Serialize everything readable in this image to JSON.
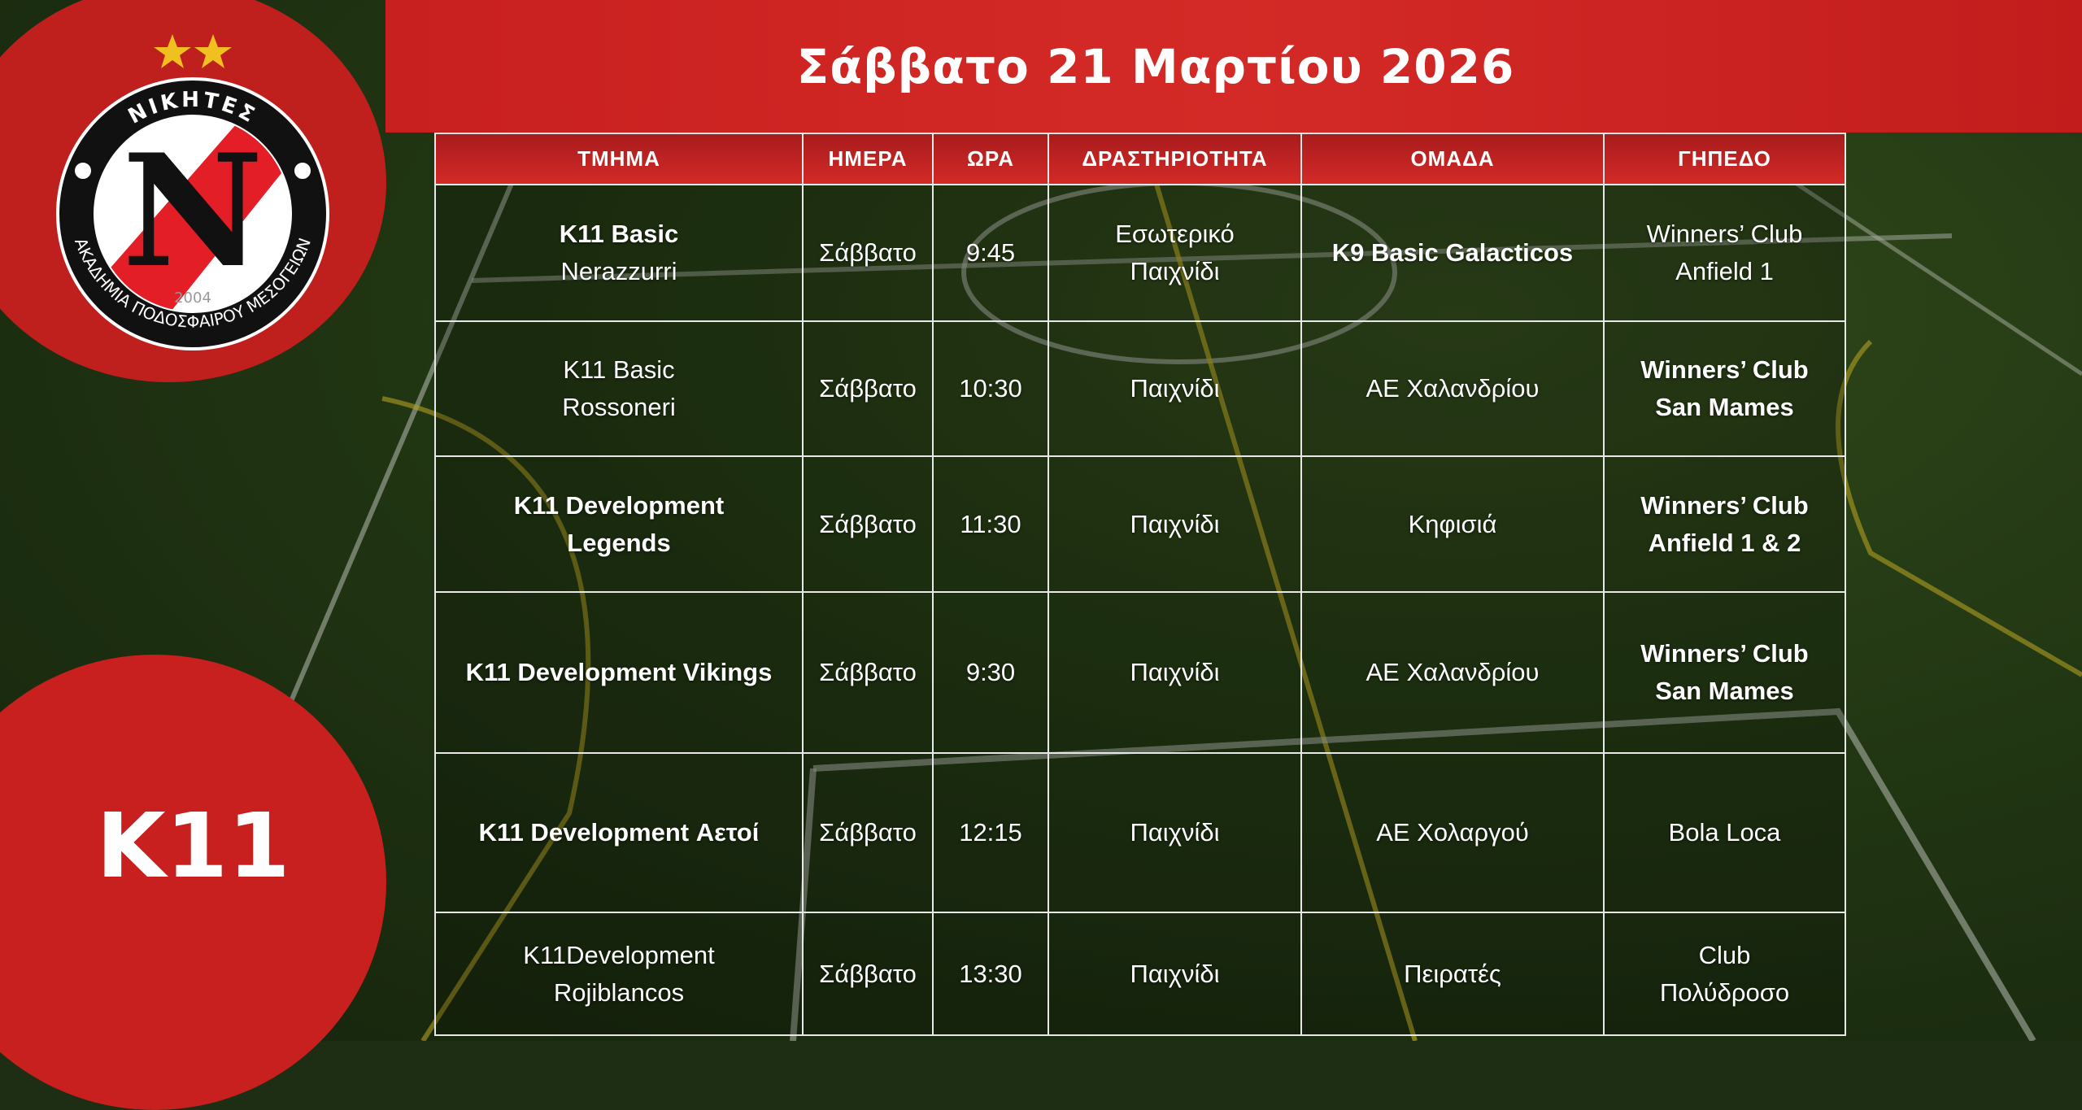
{
  "header": {
    "title": "Σάββατο 21 Μαρτίου 2026"
  },
  "logo": {
    "stars": 2,
    "top_text": "ΝΙΚΗΤΕΣ",
    "ring_text": "ΑΚΑΔΗΜΙΑ ΠΟΔΟΣΦΑΙΡΟΥ ΜΕΣΟΓΕΙΩΝ",
    "letter": "N",
    "year": "2004"
  },
  "category_badge": "K11",
  "colors": {
    "brand_red": "#c8201f",
    "header_red": "#d32a27",
    "star_gold": "#f0c020"
  },
  "table": {
    "columns": [
      "ΤΜΗΜΑ",
      "ΗΜΕΡΑ",
      "ΩΡΑ",
      "ΔΡΑΣΤΗΡΙΟΤΗΤΑ",
      "ΟΜΑΔΑ",
      "ΓΗΠΕΔΟ"
    ],
    "rows": [
      [
        [
          "K11 Basic",
          "Nerazzurri"
        ],
        [
          "Σάββατο"
        ],
        [
          "9:45"
        ],
        [
          "Εσωτερικό",
          "Παιχνίδι"
        ],
        [
          "K9 Basic Galacticos"
        ],
        [
          "Winners’ Club",
          "Anfield 1"
        ]
      ],
      [
        [
          "K11 Basic",
          "Rossoneri"
        ],
        [
          "Σάββατο"
        ],
        [
          "10:30"
        ],
        [
          "Παιχνίδι"
        ],
        [
          "ΑΕ Χαλανδρίου"
        ],
        [
          "Winners’ Club",
          "San Mames"
        ]
      ],
      [
        [
          "K11 Development",
          "Legends"
        ],
        [
          "Σάββατο"
        ],
        [
          "11:30"
        ],
        [
          "Παιχνίδι"
        ],
        [
          "Κηφισιά"
        ],
        [
          "Winners’ Club",
          "Anfield 1 & 2"
        ]
      ],
      [
        [
          "K11 Development Vikings"
        ],
        [
          "Σάββατο"
        ],
        [
          "9:30"
        ],
        [
          "Παιχνίδι"
        ],
        [
          "ΑΕ Χαλανδρίου"
        ],
        [
          "Winners’ Club",
          "San Mames"
        ]
      ],
      [
        [
          "K11 Development Αετοί"
        ],
        [
          "Σάββατο"
        ],
        [
          "12:15"
        ],
        [
          "Παιχνίδι"
        ],
        [
          "ΑΕ Χολαργού"
        ],
        [
          "Bola Loca"
        ]
      ],
      [
        [
          "K11Development",
          "Rojiblancos"
        ],
        [
          "Σάββατο"
        ],
        [
          "13:30"
        ],
        [
          "Παιχνίδι"
        ],
        [
          "Πειρατές"
        ],
        [
          "Club",
          "Πολύδροσο"
        ]
      ]
    ]
  }
}
